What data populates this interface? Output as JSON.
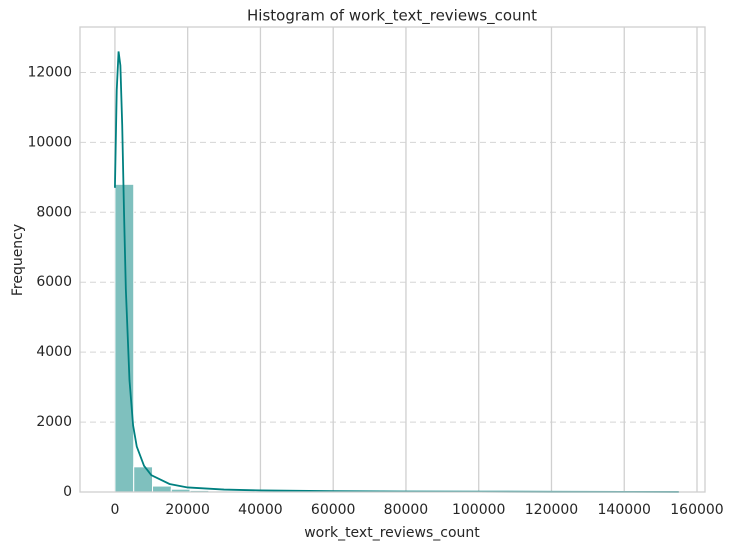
{
  "chart_data": {
    "type": "histogram",
    "title": "Histogram of work_text_reviews_count",
    "x_label": "work_text_reviews_count",
    "y_label": "Frequency",
    "bins": [
      0,
      5167,
      10334,
      15501,
      20668,
      25835,
      31002,
      36169,
      41336,
      46503,
      51670,
      56837,
      62004,
      67171,
      72338,
      77505,
      82672,
      87839,
      93006,
      98173,
      103340,
      108507,
      113674,
      118841,
      124008,
      129175,
      134342,
      139509,
      144676,
      149843,
      155010
    ],
    "counts": [
      8800,
      720,
      170,
      80,
      45,
      30,
      22,
      15,
      12,
      10,
      8,
      6,
      5,
      4,
      3,
      3,
      2,
      2,
      2,
      1,
      1,
      1,
      1,
      1,
      1,
      0,
      0,
      0,
      0,
      1
    ],
    "color": "#7fc0be",
    "kde": {
      "color": "#008080",
      "x": [
        0,
        500,
        1000,
        1500,
        2000,
        2500,
        3000,
        4000,
        5000,
        6000,
        8000,
        10000,
        15000,
        20000,
        30000,
        40000,
        60000,
        80000,
        100000,
        120000,
        140000,
        155000
      ],
      "y": [
        8700,
        11500,
        12600,
        12200,
        10500,
        8000,
        5800,
        3200,
        1900,
        1300,
        750,
        480,
        230,
        130,
        70,
        45,
        25,
        15,
        10,
        6,
        4,
        2
      ]
    },
    "xlim": [
      -9600,
      162200
    ],
    "ylim": [
      0,
      13300
    ],
    "xticks": [
      0,
      20000,
      40000,
      60000,
      80000,
      100000,
      120000,
      140000,
      160000
    ],
    "yticks": [
      0,
      2000,
      4000,
      6000,
      8000,
      10000,
      12000
    ],
    "grid": true
  }
}
